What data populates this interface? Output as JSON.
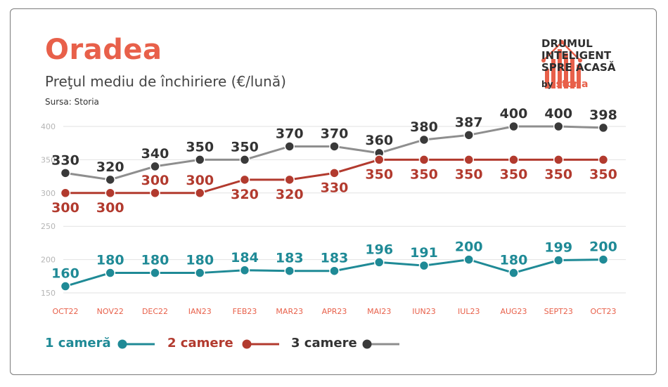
{
  "header": {
    "title": "Oradea",
    "subtitle": "Preţul mediu de închiriere (€/lună)",
    "source": "Sursa: Storia"
  },
  "logo": {
    "line1": "DRUMUL",
    "line2": "INTELIGENT",
    "line3": "SPRE ACASĂ",
    "by": "by",
    "brand": "storia"
  },
  "chart_data": {
    "type": "line",
    "categories": [
      "OCT22",
      "NOV22",
      "DEC22",
      "IAN23",
      "FEB23",
      "MAR23",
      "APR23",
      "MAI23",
      "IUN23",
      "IUL23",
      "AUG23",
      "SEPT23",
      "OCT23"
    ],
    "yticks": [
      150,
      200,
      250,
      300,
      350,
      400
    ],
    "ylim": [
      145,
      420
    ],
    "grid": true,
    "legend_position": "bottom-left",
    "series": [
      {
        "name": "1 cameră",
        "color": "#1f8a96",
        "values": [
          160,
          180,
          180,
          180,
          184,
          183,
          183,
          196,
          191,
          200,
          180,
          199,
          200
        ],
        "label_pos": [
          "above",
          "above",
          "above",
          "above",
          "above",
          "above",
          "above",
          "above",
          "above",
          "above",
          "above",
          "above",
          "above"
        ]
      },
      {
        "name": "2 camere",
        "color": "#b23a2e",
        "values": [
          300,
          300,
          300,
          300,
          320,
          320,
          330,
          350,
          350,
          350,
          350,
          350,
          350
        ],
        "label_pos": [
          "below",
          "below",
          "above",
          "above",
          "below",
          "below",
          "below",
          "below",
          "below",
          "below",
          "below",
          "below",
          "below"
        ]
      },
      {
        "name": "3 camere",
        "color": "#8e8e8e",
        "values": [
          330,
          320,
          340,
          350,
          350,
          370,
          370,
          360,
          380,
          387,
          400,
          400,
          398
        ],
        "label_pos": [
          "above",
          "above",
          "above",
          "above",
          "above",
          "above",
          "above",
          "above",
          "above",
          "above",
          "above",
          "above",
          "above"
        ]
      }
    ]
  },
  "colors": {
    "title": "#e8604a",
    "grid": "#e2e2e2",
    "tick": "#b5b5b5",
    "category": "#e8604a",
    "label_3": "#333333",
    "label_2": "#b23a2e",
    "label_1": "#1f8a96"
  }
}
